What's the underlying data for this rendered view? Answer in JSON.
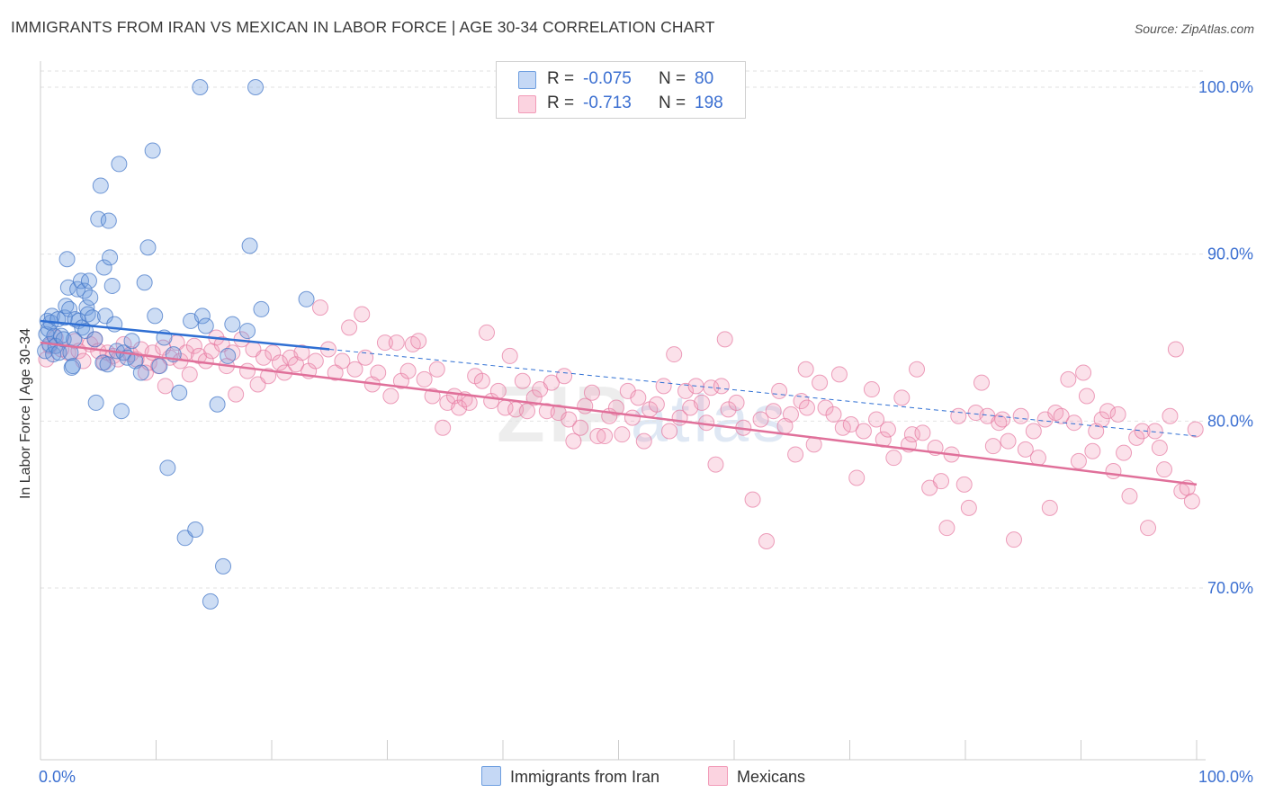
{
  "title": "IMMIGRANTS FROM IRAN VS MEXICAN IN LABOR FORCE | AGE 30-34 CORRELATION CHART",
  "source": "Source: ZipAtlas.com",
  "watermark": {
    "zip": "ZIP",
    "atlas": "atlas"
  },
  "colors": {
    "blue": "#6f9fe0",
    "pink": "#f29bb8",
    "blue_line": "#2f6fd3",
    "pink_line": "#e0709a",
    "tick_text": "#3b6fd1"
  },
  "legend": {
    "rows": [
      {
        "r_label": "R =",
        "r_value": "-0.075",
        "n_label": "N =",
        "n_value": "80"
      },
      {
        "r_label": "R =",
        "r_value": "-0.713",
        "n_label": "N =",
        "n_value": "198"
      }
    ]
  },
  "chart_data": {
    "type": "scatter",
    "title": "IMMIGRANTS FROM IRAN VS MEXICAN IN LABOR FORCE | AGE 30-34 CORRELATION CHART",
    "xlabel": "",
    "ylabel": "In Labor Force | Age 30-34",
    "xlim": [
      0,
      100
    ],
    "ylim": [
      60,
      103
    ],
    "x_tick_labels": [
      "0.0%",
      "100.0%"
    ],
    "y_ticks": [
      70,
      80,
      90,
      100
    ],
    "y_tick_labels": [
      "70.0%",
      "80.0%",
      "90.0%",
      "100.0%"
    ],
    "grid": true,
    "legend_placement": "top-center",
    "series": [
      {
        "name": "Immigrants from Iran",
        "color": "#6f9fe0",
        "r": -0.075,
        "n": 80,
        "trend": {
          "x": [
            0,
            25,
            100
          ],
          "y": [
            86.0,
            84.3,
            79.1
          ],
          "solid_until": 25
        },
        "points": [
          [
            0.4,
            84.2
          ],
          [
            0.5,
            85.2
          ],
          [
            0.6,
            86.0
          ],
          [
            0.7,
            85.5
          ],
          [
            0.8,
            84.6
          ],
          [
            0.9,
            85.9
          ],
          [
            1.0,
            86.3
          ],
          [
            1.1,
            84.0
          ],
          [
            1.2,
            85.1
          ],
          [
            1.3,
            84.5
          ],
          [
            1.5,
            86.1
          ],
          [
            1.6,
            84.1
          ],
          [
            1.8,
            85.1
          ],
          [
            2.0,
            84.9
          ],
          [
            2.1,
            86.2
          ],
          [
            2.2,
            86.9
          ],
          [
            2.3,
            89.7
          ],
          [
            2.4,
            88.0
          ],
          [
            2.5,
            86.7
          ],
          [
            2.6,
            84.1
          ],
          [
            2.7,
            83.2
          ],
          [
            2.8,
            83.3
          ],
          [
            2.9,
            84.9
          ],
          [
            3.0,
            86.1
          ],
          [
            3.2,
            87.9
          ],
          [
            3.3,
            86.0
          ],
          [
            3.5,
            88.4
          ],
          [
            3.6,
            85.6
          ],
          [
            3.8,
            87.8
          ],
          [
            3.9,
            85.4
          ],
          [
            4.0,
            86.8
          ],
          [
            4.1,
            86.4
          ],
          [
            4.2,
            88.4
          ],
          [
            4.3,
            87.4
          ],
          [
            4.5,
            86.2
          ],
          [
            4.7,
            84.9
          ],
          [
            4.8,
            81.1
          ],
          [
            5.0,
            92.1
          ],
          [
            5.2,
            94.1
          ],
          [
            5.4,
            83.5
          ],
          [
            5.5,
            89.2
          ],
          [
            5.6,
            86.3
          ],
          [
            5.8,
            83.4
          ],
          [
            5.9,
            92.0
          ],
          [
            6.0,
            89.8
          ],
          [
            6.2,
            88.1
          ],
          [
            6.4,
            85.8
          ],
          [
            6.6,
            84.2
          ],
          [
            6.8,
            95.4
          ],
          [
            7.0,
            80.6
          ],
          [
            7.2,
            84.1
          ],
          [
            7.5,
            83.8
          ],
          [
            7.9,
            84.8
          ],
          [
            8.2,
            83.6
          ],
          [
            8.7,
            82.9
          ],
          [
            9.0,
            88.3
          ],
          [
            9.3,
            90.4
          ],
          [
            9.7,
            96.2
          ],
          [
            9.9,
            86.3
          ],
          [
            10.3,
            83.3
          ],
          [
            10.7,
            85.0
          ],
          [
            11.0,
            77.2
          ],
          [
            11.5,
            84.0
          ],
          [
            12.0,
            81.7
          ],
          [
            12.5,
            73.0
          ],
          [
            13.0,
            86.0
          ],
          [
            13.4,
            73.5
          ],
          [
            13.8,
            100.0
          ],
          [
            14.0,
            86.3
          ],
          [
            14.3,
            85.7
          ],
          [
            14.7,
            69.2
          ],
          [
            15.3,
            81.0
          ],
          [
            15.8,
            71.3
          ],
          [
            16.2,
            83.9
          ],
          [
            16.6,
            85.8
          ],
          [
            17.9,
            85.4
          ],
          [
            18.1,
            90.5
          ],
          [
            18.6,
            100.0
          ],
          [
            19.1,
            86.7
          ],
          [
            23.0,
            87.3
          ]
        ]
      },
      {
        "name": "Mexicans",
        "color": "#f29bb8",
        "r": -0.713,
        "n": 198,
        "trend": {
          "x": [
            0,
            100
          ],
          "y": [
            84.7,
            76.2
          ]
        },
        "points": [
          [
            0.5,
            83.7
          ],
          [
            0.8,
            84.5
          ],
          [
            1.3,
            85.0
          ],
          [
            1.8,
            84.3
          ],
          [
            2.4,
            84.1
          ],
          [
            3.0,
            84.8
          ],
          [
            3.3,
            84.2
          ],
          [
            3.7,
            83.6
          ],
          [
            4.3,
            84.6
          ],
          [
            4.7,
            84.9
          ],
          [
            5.0,
            84.2
          ],
          [
            5.5,
            83.5
          ],
          [
            5.8,
            84.1
          ],
          [
            6.3,
            83.9
          ],
          [
            6.7,
            83.7
          ],
          [
            7.2,
            84.6
          ],
          [
            7.8,
            84.0
          ],
          [
            8.3,
            83.7
          ],
          [
            8.7,
            84.3
          ],
          [
            9.1,
            82.9
          ],
          [
            9.4,
            83.5
          ],
          [
            9.7,
            84.1
          ],
          [
            10.2,
            83.3
          ],
          [
            10.6,
            84.4
          ],
          [
            10.8,
            82.1
          ],
          [
            11.2,
            83.8
          ],
          [
            11.8,
            84.7
          ],
          [
            12.1,
            83.6
          ],
          [
            12.6,
            84.1
          ],
          [
            12.9,
            82.8
          ],
          [
            13.3,
            84.5
          ],
          [
            13.7,
            83.9
          ],
          [
            14.3,
            83.6
          ],
          [
            14.8,
            84.2
          ],
          [
            15.2,
            85.0
          ],
          [
            15.7,
            84.6
          ],
          [
            16.1,
            83.3
          ],
          [
            16.6,
            84.1
          ],
          [
            16.9,
            81.6
          ],
          [
            17.4,
            84.9
          ],
          [
            17.9,
            83.0
          ],
          [
            18.4,
            84.3
          ],
          [
            18.8,
            82.2
          ],
          [
            19.3,
            83.8
          ],
          [
            19.7,
            82.7
          ],
          [
            20.1,
            84.1
          ],
          [
            20.7,
            83.5
          ],
          [
            21.1,
            82.9
          ],
          [
            21.6,
            83.8
          ],
          [
            22.1,
            83.4
          ],
          [
            22.6,
            84.1
          ],
          [
            23.2,
            83.0
          ],
          [
            23.8,
            83.6
          ],
          [
            24.2,
            86.8
          ],
          [
            24.9,
            84.3
          ],
          [
            25.5,
            82.9
          ],
          [
            26.1,
            83.6
          ],
          [
            26.7,
            85.6
          ],
          [
            27.2,
            83.1
          ],
          [
            27.8,
            86.4
          ],
          [
            28.1,
            83.8
          ],
          [
            28.7,
            82.2
          ],
          [
            29.2,
            82.9
          ],
          [
            29.8,
            84.7
          ],
          [
            30.3,
            81.5
          ],
          [
            30.8,
            84.7
          ],
          [
            31.2,
            82.4
          ],
          [
            31.8,
            83.0
          ],
          [
            32.2,
            84.6
          ],
          [
            32.7,
            84.8
          ],
          [
            33.2,
            82.5
          ],
          [
            33.9,
            81.5
          ],
          [
            34.3,
            83.1
          ],
          [
            34.8,
            79.6
          ],
          [
            35.2,
            81.1
          ],
          [
            35.8,
            81.5
          ],
          [
            36.2,
            80.8
          ],
          [
            36.7,
            81.3
          ],
          [
            37.1,
            81.1
          ],
          [
            37.6,
            82.7
          ],
          [
            38.2,
            82.4
          ],
          [
            38.6,
            85.3
          ],
          [
            39.0,
            81.2
          ],
          [
            39.6,
            81.8
          ],
          [
            40.2,
            80.8
          ],
          [
            40.6,
            83.9
          ],
          [
            41.1,
            80.7
          ],
          [
            41.7,
            82.4
          ],
          [
            42.1,
            80.6
          ],
          [
            42.7,
            81.4
          ],
          [
            43.2,
            81.9
          ],
          [
            43.8,
            80.6
          ],
          [
            44.2,
            82.3
          ],
          [
            44.8,
            80.5
          ],
          [
            45.3,
            82.7
          ],
          [
            45.7,
            80.1
          ],
          [
            46.1,
            78.8
          ],
          [
            46.7,
            79.6
          ],
          [
            47.1,
            80.9
          ],
          [
            47.7,
            81.7
          ],
          [
            48.2,
            79.1
          ],
          [
            48.8,
            79.1
          ],
          [
            49.2,
            80.3
          ],
          [
            49.8,
            80.8
          ],
          [
            50.3,
            79.2
          ],
          [
            50.8,
            81.8
          ],
          [
            51.2,
            80.2
          ],
          [
            51.7,
            81.4
          ],
          [
            52.2,
            78.8
          ],
          [
            52.7,
            80.7
          ],
          [
            53.3,
            81.0
          ],
          [
            53.9,
            82.1
          ],
          [
            54.4,
            79.4
          ],
          [
            54.8,
            84.0
          ],
          [
            55.3,
            80.2
          ],
          [
            55.8,
            81.8
          ],
          [
            56.2,
            80.8
          ],
          [
            56.7,
            82.1
          ],
          [
            57.2,
            81.1
          ],
          [
            57.6,
            79.9
          ],
          [
            58.0,
            82.0
          ],
          [
            58.4,
            77.4
          ],
          [
            58.9,
            82.1
          ],
          [
            59.5,
            80.7
          ],
          [
            60.2,
            81.1
          ],
          [
            60.8,
            79.6
          ],
          [
            61.6,
            75.3
          ],
          [
            62.3,
            80.1
          ],
          [
            62.8,
            72.8
          ],
          [
            63.4,
            80.6
          ],
          [
            63.9,
            81.8
          ],
          [
            64.4,
            79.7
          ],
          [
            64.9,
            80.4
          ],
          [
            65.3,
            78.0
          ],
          [
            65.8,
            81.2
          ],
          [
            66.3,
            80.8
          ],
          [
            66.9,
            78.6
          ],
          [
            67.4,
            82.3
          ],
          [
            67.9,
            80.8
          ],
          [
            68.6,
            80.4
          ],
          [
            69.1,
            82.8
          ],
          [
            69.4,
            79.6
          ],
          [
            70.1,
            79.8
          ],
          [
            70.6,
            76.6
          ],
          [
            71.2,
            79.4
          ],
          [
            71.9,
            81.9
          ],
          [
            72.3,
            80.1
          ],
          [
            72.9,
            78.9
          ],
          [
            73.3,
            79.5
          ],
          [
            73.8,
            77.8
          ],
          [
            74.5,
            81.4
          ],
          [
            75.1,
            78.6
          ],
          [
            75.4,
            79.2
          ],
          [
            75.8,
            83.1
          ],
          [
            76.3,
            79.3
          ],
          [
            76.9,
            76.0
          ],
          [
            77.4,
            78.4
          ],
          [
            77.9,
            76.4
          ],
          [
            78.4,
            73.6
          ],
          [
            78.8,
            78.0
          ],
          [
            79.4,
            80.3
          ],
          [
            79.9,
            76.2
          ],
          [
            80.3,
            74.8
          ],
          [
            80.9,
            80.5
          ],
          [
            81.4,
            82.3
          ],
          [
            81.9,
            80.3
          ],
          [
            82.4,
            78.5
          ],
          [
            82.9,
            79.9
          ],
          [
            83.2,
            80.1
          ],
          [
            83.7,
            78.8
          ],
          [
            84.2,
            72.9
          ],
          [
            84.8,
            80.3
          ],
          [
            85.2,
            78.3
          ],
          [
            85.9,
            79.4
          ],
          [
            86.3,
            77.8
          ],
          [
            86.9,
            80.1
          ],
          [
            87.3,
            74.8
          ],
          [
            87.8,
            80.5
          ],
          [
            88.3,
            80.3
          ],
          [
            88.9,
            82.5
          ],
          [
            89.4,
            79.9
          ],
          [
            89.8,
            77.6
          ],
          [
            90.2,
            82.9
          ],
          [
            90.5,
            81.5
          ],
          [
            91.0,
            78.2
          ],
          [
            91.3,
            79.4
          ],
          [
            91.8,
            80.1
          ],
          [
            92.3,
            80.6
          ],
          [
            92.8,
            77.0
          ],
          [
            93.2,
            80.4
          ],
          [
            93.7,
            78.1
          ],
          [
            94.2,
            75.5
          ],
          [
            94.8,
            79.0
          ],
          [
            95.3,
            79.4
          ],
          [
            95.8,
            73.6
          ],
          [
            96.4,
            79.4
          ],
          [
            96.8,
            78.4
          ],
          [
            97.2,
            77.1
          ],
          [
            97.7,
            80.3
          ],
          [
            98.2,
            84.3
          ],
          [
            98.7,
            75.8
          ],
          [
            99.2,
            76.0
          ],
          [
            99.6,
            75.2
          ],
          [
            99.9,
            79.5
          ],
          [
            59.2,
            84.9
          ],
          [
            66.2,
            83.1
          ]
        ]
      }
    ]
  },
  "bottom_legend": {
    "items": [
      "Immigrants from Iran",
      "Mexicans"
    ]
  }
}
